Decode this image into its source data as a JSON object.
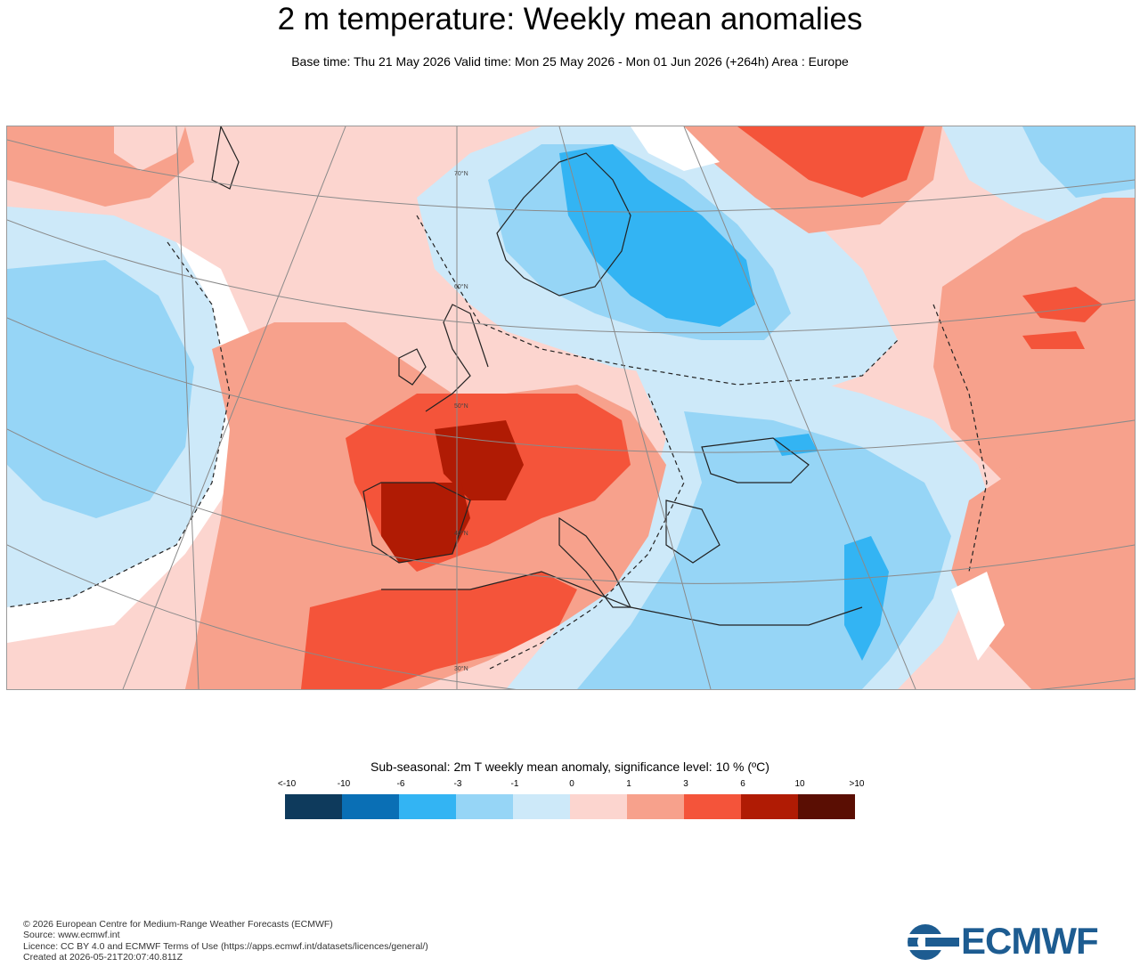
{
  "title": "2 m temperature: Weekly mean anomalies",
  "subtitle": "Base time: Thu 21 May 2026 Valid time: Mon 25 May 2026 - Mon 01 Jun 2026 (+264h) Area : Europe",
  "legend": {
    "title": "Sub-seasonal: 2m T weekly mean anomaly, significance level: 10 % (ºC)",
    "labels": [
      "<-10",
      "-10",
      "-6",
      "-3",
      "-1",
      "0",
      "1",
      "3",
      "6",
      "10",
      ">10"
    ],
    "colors": [
      "#0e3a5c",
      "#0a6fb5",
      "#33b4f3",
      "#96d5f6",
      "#cde9f9",
      "#fcd5cf",
      "#f7a18c",
      "#f4543a",
      "#b01b04",
      "#5a0e03"
    ]
  },
  "map": {
    "lat_labels": [
      "70°N",
      "60°N",
      "50°N",
      "40°N",
      "30°N"
    ]
  },
  "footer": {
    "line1": "© 2026 European Centre for Medium-Range Weather Forecasts (ECMWF)",
    "line2": "Source: www.ecmwf.int",
    "line3": "Licence: CC BY 4.0 and ECMWF Terms of Use (https://apps.ecmwf.int/datasets/licences/general/)",
    "line4": "Created at 2026-05-21T20:07:40.811Z"
  },
  "logo": {
    "text": "ECMWF",
    "color": "#1d5c91"
  }
}
